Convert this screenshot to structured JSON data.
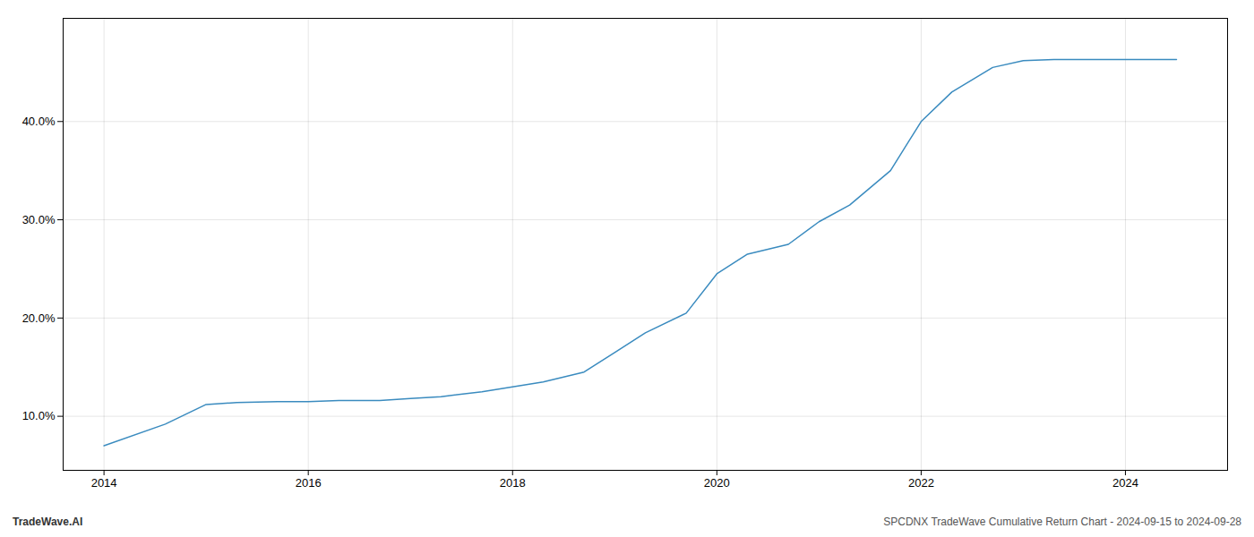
{
  "chart_data": {
    "type": "line",
    "x": [
      2014.0,
      2014.6,
      2015.0,
      2015.3,
      2015.7,
      2016.0,
      2016.3,
      2016.7,
      2017.0,
      2017.3,
      2017.7,
      2018.0,
      2018.3,
      2018.7,
      2019.0,
      2019.3,
      2019.7,
      2020.0,
      2020.3,
      2020.7,
      2021.0,
      2021.3,
      2021.7,
      2022.0,
      2022.3,
      2022.7,
      2023.0,
      2023.3,
      2023.7,
      2024.0,
      2024.5
    ],
    "values": [
      7.0,
      9.2,
      11.2,
      11.4,
      11.5,
      11.5,
      11.6,
      11.6,
      11.8,
      12.0,
      12.5,
      13.0,
      13.5,
      14.5,
      16.5,
      18.5,
      20.5,
      24.5,
      26.5,
      27.5,
      29.8,
      31.5,
      35.0,
      40.0,
      43.0,
      45.5,
      46.2,
      46.3,
      46.3,
      46.3,
      46.3
    ],
    "color": "#3a8bbf",
    "xlim": [
      2013.6,
      2025.0
    ],
    "ylim": [
      4.5,
      50.5
    ],
    "xticks": [
      2014,
      2016,
      2018,
      2020,
      2022,
      2024
    ],
    "yticks": [
      {
        "value": 10.0,
        "label": "10.0%"
      },
      {
        "value": 20.0,
        "label": "20.0%"
      },
      {
        "value": 30.0,
        "label": "30.0%"
      },
      {
        "value": 40.0,
        "label": "40.0%"
      }
    ],
    "grid": true,
    "annotations": [
      "TradeWave.AI",
      "SPCDNX TradeWave Cumulative Return Chart - 2024-09-15 to 2024-09-28"
    ]
  }
}
